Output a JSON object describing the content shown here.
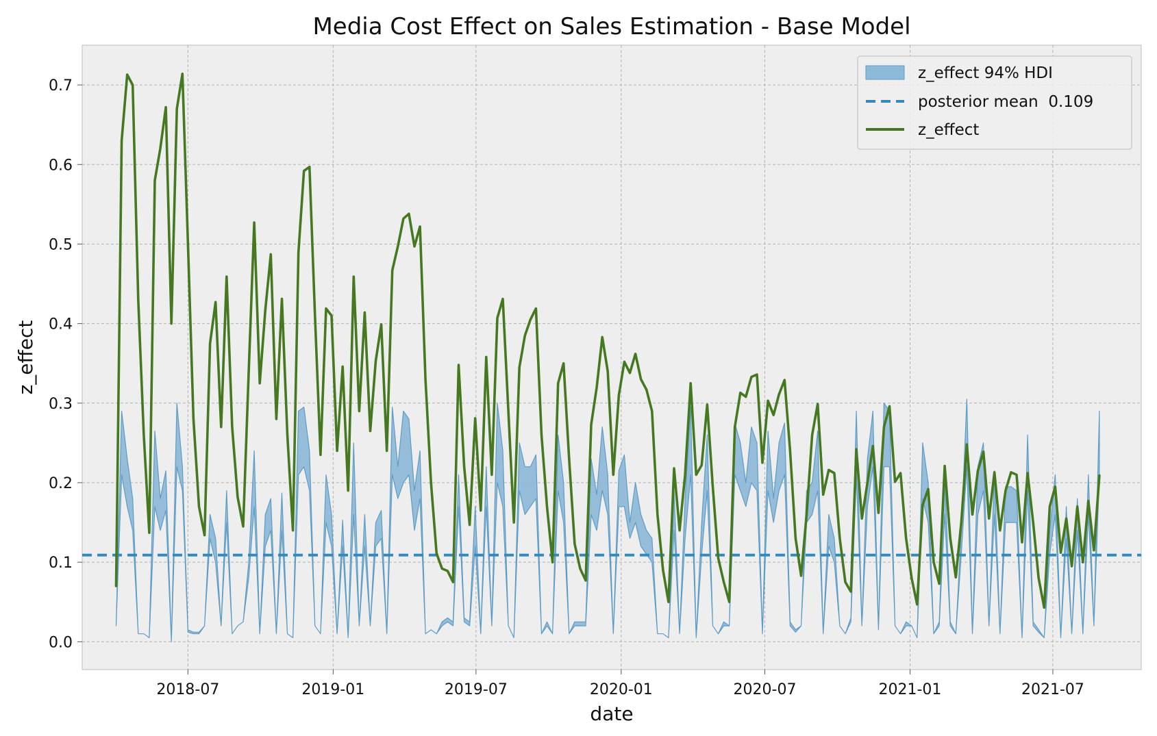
{
  "chart_data": {
    "type": "line",
    "title": "Media Cost Effect on Sales Estimation - Base Model",
    "xlabel": "date",
    "ylabel": "z_effect",
    "xlim": [
      "2018-02-17",
      "2021-10-21"
    ],
    "ylim": [
      -0.035,
      0.75
    ],
    "grid": true,
    "legend_position": "top-right",
    "x_ticks": [
      "2018-07",
      "2019-01",
      "2019-07",
      "2020-01",
      "2020-07",
      "2021-01",
      "2021-07"
    ],
    "y_ticks": [
      0.0,
      0.1,
      0.2,
      0.3,
      0.4,
      0.5,
      0.6,
      0.7
    ],
    "y_tick_labels": [
      "0.0",
      "0.1",
      "0.2",
      "0.3",
      "0.4",
      "0.5",
      "0.6",
      "0.7"
    ],
    "start_date": "2018-04-01",
    "frequency": "weekly",
    "posterior_mean": 0.109,
    "colors": {
      "hdi_fill": "#8fb9d8",
      "hdi_edge": "#5e9cc5",
      "mean_line": "#348abd",
      "effect_line": "#467821",
      "plot_bg": "#eeeeee",
      "grid": "#b2b2b2"
    },
    "series": [
      {
        "name": "z_effect",
        "values": [
          0.07,
          0.63,
          0.713,
          0.7,
          0.43,
          0.26,
          0.137,
          0.58,
          0.62,
          0.672,
          0.4,
          0.67,
          0.714,
          0.5,
          0.28,
          0.17,
          0.134,
          0.375,
          0.427,
          0.27,
          0.459,
          0.27,
          0.182,
          0.145,
          0.34,
          0.527,
          0.325,
          0.417,
          0.487,
          0.28,
          0.431,
          0.26,
          0.14,
          0.49,
          0.592,
          0.597,
          0.41,
          0.235,
          0.419,
          0.41,
          0.24,
          0.346,
          0.19,
          0.459,
          0.29,
          0.414,
          0.265,
          0.353,
          0.399,
          0.24,
          0.467,
          0.497,
          0.532,
          0.538,
          0.497,
          0.522,
          0.33,
          0.2,
          0.111,
          0.092,
          0.089,
          0.075,
          0.348,
          0.22,
          0.147,
          0.281,
          0.165,
          0.358,
          0.21,
          0.407,
          0.431,
          0.29,
          0.15,
          0.345,
          0.385,
          0.405,
          0.419,
          0.26,
          0.17,
          0.1,
          0.325,
          0.35,
          0.23,
          0.123,
          0.092,
          0.077,
          0.273,
          0.32,
          0.383,
          0.34,
          0.21,
          0.31,
          0.352,
          0.338,
          0.362,
          0.33,
          0.317,
          0.29,
          0.16,
          0.09,
          0.05,
          0.218,
          0.14,
          0.21,
          0.325,
          0.21,
          0.222,
          0.298,
          0.195,
          0.105,
          0.075,
          0.05,
          0.27,
          0.313,
          0.308,
          0.333,
          0.336,
          0.225,
          0.303,
          0.285,
          0.311,
          0.329,
          0.24,
          0.13,
          0.083,
          0.16,
          0.26,
          0.299,
          0.185,
          0.216,
          0.212,
          0.13,
          0.075,
          0.063,
          0.242,
          0.155,
          0.2,
          0.246,
          0.162,
          0.27,
          0.296,
          0.201,
          0.212,
          0.13,
          0.08,
          0.047,
          0.172,
          0.192,
          0.1,
          0.073,
          0.221,
          0.13,
          0.081,
          0.15,
          0.248,
          0.16,
          0.215,
          0.239,
          0.155,
          0.213,
          0.14,
          0.19,
          0.213,
          0.21,
          0.125,
          0.212,
          0.15,
          0.08,
          0.043,
          0.17,
          0.195,
          0.112,
          0.155,
          0.095,
          0.17,
          0.1,
          0.177,
          0.115,
          0.209
        ]
      },
      {
        "name": "z_effect 94% HDI",
        "upper": [
          0.02,
          0.29,
          0.23,
          0.18,
          0.01,
          0.01,
          0.005,
          0.265,
          0.18,
          0.215,
          0.0,
          0.3,
          0.22,
          0.015,
          0.012,
          0.012,
          0.02,
          0.16,
          0.13,
          0.02,
          0.19,
          0.01,
          0.02,
          0.025,
          0.1,
          0.24,
          0.01,
          0.16,
          0.18,
          0.01,
          0.187,
          0.01,
          0.005,
          0.29,
          0.295,
          0.24,
          0.02,
          0.01,
          0.21,
          0.16,
          0.01,
          0.153,
          0.005,
          0.25,
          0.02,
          0.16,
          0.02,
          0.15,
          0.165,
          0.01,
          0.295,
          0.22,
          0.29,
          0.28,
          0.19,
          0.24,
          0.01,
          0.015,
          0.01,
          0.025,
          0.03,
          0.025,
          0.21,
          0.03,
          0.025,
          0.17,
          0.01,
          0.22,
          0.02,
          0.3,
          0.24,
          0.02,
          0.005,
          0.25,
          0.22,
          0.22,
          0.235,
          0.01,
          0.025,
          0.01,
          0.26,
          0.2,
          0.01,
          0.025,
          0.025,
          0.025,
          0.23,
          0.185,
          0.27,
          0.21,
          0.01,
          0.215,
          0.235,
          0.15,
          0.2,
          0.16,
          0.14,
          0.13,
          0.01,
          0.01,
          0.005,
          0.19,
          0.01,
          0.18,
          0.295,
          0.005,
          0.15,
          0.26,
          0.02,
          0.01,
          0.025,
          0.02,
          0.275,
          0.25,
          0.2,
          0.27,
          0.25,
          0.01,
          0.265,
          0.18,
          0.25,
          0.275,
          0.025,
          0.015,
          0.02,
          0.19,
          0.2,
          0.265,
          0.01,
          0.16,
          0.13,
          0.02,
          0.01,
          0.03,
          0.29,
          0.02,
          0.23,
          0.29,
          0.015,
          0.3,
          0.29,
          0.02,
          0.01,
          0.025,
          0.02,
          0.005,
          0.25,
          0.2,
          0.01,
          0.025,
          0.215,
          0.025,
          0.01,
          0.14,
          0.305,
          0.01,
          0.22,
          0.25,
          0.02,
          0.215,
          0.01,
          0.195,
          0.195,
          0.19,
          0.005,
          0.26,
          0.025,
          0.015,
          0.005,
          0.14,
          0.21,
          0.005,
          0.17,
          0.01,
          0.18,
          0.01,
          0.21,
          0.02,
          0.29
        ],
        "lower": [
          0.02,
          0.21,
          0.17,
          0.14,
          0.01,
          0.01,
          0.005,
          0.17,
          0.14,
          0.165,
          0.0,
          0.22,
          0.19,
          0.012,
          0.01,
          0.01,
          0.02,
          0.13,
          0.1,
          0.02,
          0.15,
          0.01,
          0.02,
          0.025,
          0.08,
          0.17,
          0.01,
          0.12,
          0.14,
          0.01,
          0.14,
          0.01,
          0.005,
          0.21,
          0.22,
          0.19,
          0.02,
          0.01,
          0.15,
          0.12,
          0.01,
          0.12,
          0.005,
          0.16,
          0.02,
          0.12,
          0.02,
          0.12,
          0.13,
          0.01,
          0.21,
          0.18,
          0.2,
          0.21,
          0.14,
          0.18,
          0.01,
          0.015,
          0.01,
          0.02,
          0.025,
          0.02,
          0.17,
          0.025,
          0.02,
          0.12,
          0.01,
          0.17,
          0.02,
          0.2,
          0.17,
          0.02,
          0.005,
          0.19,
          0.16,
          0.17,
          0.18,
          0.01,
          0.02,
          0.01,
          0.19,
          0.15,
          0.01,
          0.02,
          0.02,
          0.02,
          0.16,
          0.14,
          0.19,
          0.16,
          0.01,
          0.17,
          0.17,
          0.13,
          0.15,
          0.12,
          0.11,
          0.1,
          0.01,
          0.01,
          0.005,
          0.14,
          0.01,
          0.13,
          0.21,
          0.005,
          0.11,
          0.19,
          0.02,
          0.01,
          0.02,
          0.02,
          0.21,
          0.19,
          0.17,
          0.2,
          0.19,
          0.01,
          0.19,
          0.15,
          0.19,
          0.21,
          0.02,
          0.012,
          0.02,
          0.15,
          0.16,
          0.19,
          0.01,
          0.12,
          0.1,
          0.02,
          0.01,
          0.025,
          0.21,
          0.02,
          0.17,
          0.22,
          0.015,
          0.22,
          0.22,
          0.02,
          0.01,
          0.02,
          0.02,
          0.005,
          0.18,
          0.15,
          0.01,
          0.02,
          0.16,
          0.02,
          0.01,
          0.11,
          0.22,
          0.01,
          0.16,
          0.19,
          0.02,
          0.16,
          0.01,
          0.15,
          0.15,
          0.15,
          0.005,
          0.19,
          0.02,
          0.012,
          0.005,
          0.11,
          0.16,
          0.005,
          0.13,
          0.01,
          0.14,
          0.01,
          0.16,
          0.02,
          0.21
        ]
      },
      {
        "name": "posterior mean  0.109",
        "value": 0.109
      }
    ],
    "legend": [
      {
        "label": "z_effect 94% HDI",
        "kind": "band",
        "color": "#8fb9d8"
      },
      {
        "label": "posterior mean  0.109",
        "kind": "dashed",
        "color": "#348abd"
      },
      {
        "label": "z_effect",
        "kind": "line",
        "color": "#467821"
      }
    ]
  }
}
